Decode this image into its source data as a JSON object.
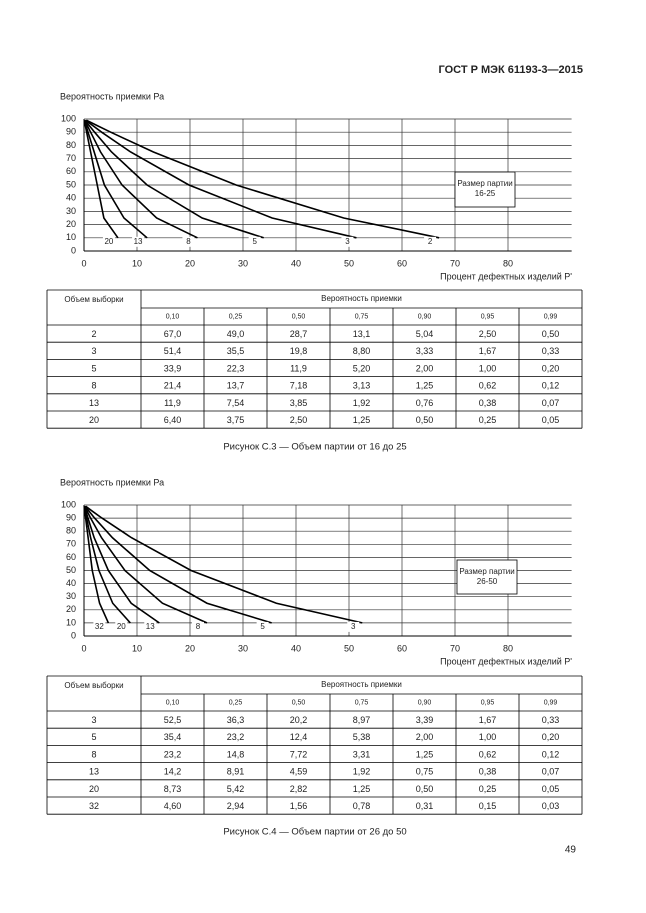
{
  "header": "ГОСТ Р МЭК 61193-3—2015",
  "page_number": "49",
  "figures": [
    {
      "chart": {
        "type": "line",
        "ylabel": "Вероятность приемки Ра",
        "xlabel": "Процент дефектных изделий Р'",
        "xlim": [
          0,
          92
        ],
        "ylim": [
          0,
          100
        ],
        "xticks": [
          0,
          10,
          20,
          30,
          40,
          50,
          60,
          70,
          80
        ],
        "yticks": [
          0,
          10,
          20,
          30,
          40,
          50,
          60,
          70,
          80,
          90,
          100
        ],
        "grid": true,
        "note": [
          "Размер партии",
          "16-25"
        ],
        "y": [
          10,
          25,
          50,
          75,
          90,
          95,
          99
        ],
        "series": [
          {
            "name": "2",
            "x": [
              67.0,
              49.0,
              28.7,
              13.1,
              5.04,
              2.5,
              0.5
            ]
          },
          {
            "name": "3",
            "x": [
              51.4,
              35.5,
              19.8,
              8.8,
              3.33,
              1.67,
              0.33
            ]
          },
          {
            "name": "5",
            "x": [
              33.9,
              22.3,
              11.9,
              5.2,
              2.0,
              1.0,
              0.2
            ]
          },
          {
            "name": "8",
            "x": [
              21.4,
              13.7,
              7.18,
              3.13,
              1.25,
              0.62,
              0.12
            ]
          },
          {
            "name": "13",
            "x": [
              11.9,
              7.54,
              3.85,
              1.92,
              0.76,
              0.38,
              0.07
            ]
          },
          {
            "name": "20",
            "x": [
              6.4,
              3.75,
              2.5,
              1.25,
              0.5,
              0.25,
              0.05
            ]
          }
        ]
      },
      "table": {
        "corner": "Объем выборки",
        "group": "Вероятность приемки",
        "columns": [
          "0,10",
          "0,25",
          "0,50",
          "0,75",
          "0,90",
          "0,95",
          "0,99"
        ],
        "rows": [
          [
            "2",
            "67,0",
            "49,0",
            "28,7",
            "13,1",
            "5,04",
            "2,50",
            "0,50"
          ],
          [
            "3",
            "51,4",
            "35,5",
            "19,8",
            "8,80",
            "3,33",
            "1,67",
            "0,33"
          ],
          [
            "5",
            "33,9",
            "22,3",
            "11,9",
            "5,20",
            "2,00",
            "1,00",
            "0,20"
          ],
          [
            "8",
            "21,4",
            "13,7",
            "7,18",
            "3,13",
            "1,25",
            "0,62",
            "0,12"
          ],
          [
            "13",
            "11,9",
            "7,54",
            "3,85",
            "1,92",
            "0,76",
            "0,38",
            "0,07"
          ],
          [
            "20",
            "6,40",
            "3,75",
            "2,50",
            "1,25",
            "0,50",
            "0,25",
            "0,05"
          ]
        ]
      },
      "caption": "Рисунок С.3 — Объем партии от 16 до 25"
    },
    {
      "chart": {
        "type": "line",
        "ylabel": "Вероятность приемки Ра",
        "xlabel": "Процент дефектных изделий Р'",
        "xlim": [
          0,
          92
        ],
        "ylim": [
          0,
          100
        ],
        "xticks": [
          0,
          10,
          20,
          30,
          40,
          50,
          60,
          70,
          80
        ],
        "yticks": [
          0,
          10,
          20,
          30,
          40,
          50,
          60,
          70,
          80,
          90,
          100
        ],
        "grid": true,
        "note": [
          "Размер партии",
          "26-50"
        ],
        "y": [
          10,
          25,
          50,
          75,
          90,
          95,
          99
        ],
        "series": [
          {
            "name": "3",
            "x": [
              52.5,
              36.3,
              20.2,
              8.97,
              3.39,
              1.67,
              0.33
            ]
          },
          {
            "name": "5",
            "x": [
              35.4,
              23.2,
              12.4,
              5.38,
              2.0,
              1.0,
              0.2
            ]
          },
          {
            "name": "8",
            "x": [
              23.2,
              14.8,
              7.72,
              3.31,
              1.25,
              0.62,
              0.12
            ]
          },
          {
            "name": "13",
            "x": [
              14.2,
              8.91,
              4.59,
              1.92,
              0.75,
              0.38,
              0.07
            ]
          },
          {
            "name": "20",
            "x": [
              8.73,
              5.42,
              2.82,
              1.25,
              0.5,
              0.25,
              0.05
            ]
          },
          {
            "name": "32",
            "x": [
              4.6,
              2.94,
              1.56,
              0.78,
              0.31,
              0.15,
              0.03
            ]
          }
        ]
      },
      "table": {
        "corner": "Объем выборки",
        "group": "Вероятность приемки",
        "columns": [
          "0,10",
          "0,25",
          "0,50",
          "0,75",
          "0,90",
          "0,95",
          "0,99"
        ],
        "rows": [
          [
            "3",
            "52,5",
            "36,3",
            "20,2",
            "8,97",
            "3,39",
            "1,67",
            "0,33"
          ],
          [
            "5",
            "35,4",
            "23,2",
            "12,4",
            "5,38",
            "2,00",
            "1,00",
            "0,20"
          ],
          [
            "8",
            "23,2",
            "14,8",
            "7,72",
            "3,31",
            "1,25",
            "0,62",
            "0,12"
          ],
          [
            "13",
            "14,2",
            "8,91",
            "4,59",
            "1,92",
            "0,75",
            "0,38",
            "0,07"
          ],
          [
            "20",
            "8,73",
            "5,42",
            "2,82",
            "1,25",
            "0,50",
            "0,25",
            "0,05"
          ],
          [
            "32",
            "4,60",
            "2,94",
            "1,56",
            "0,78",
            "0,31",
            "0,15",
            "0,03"
          ]
        ]
      },
      "caption": "Рисунок С.4 — Объем партии от 26 до 50"
    }
  ]
}
